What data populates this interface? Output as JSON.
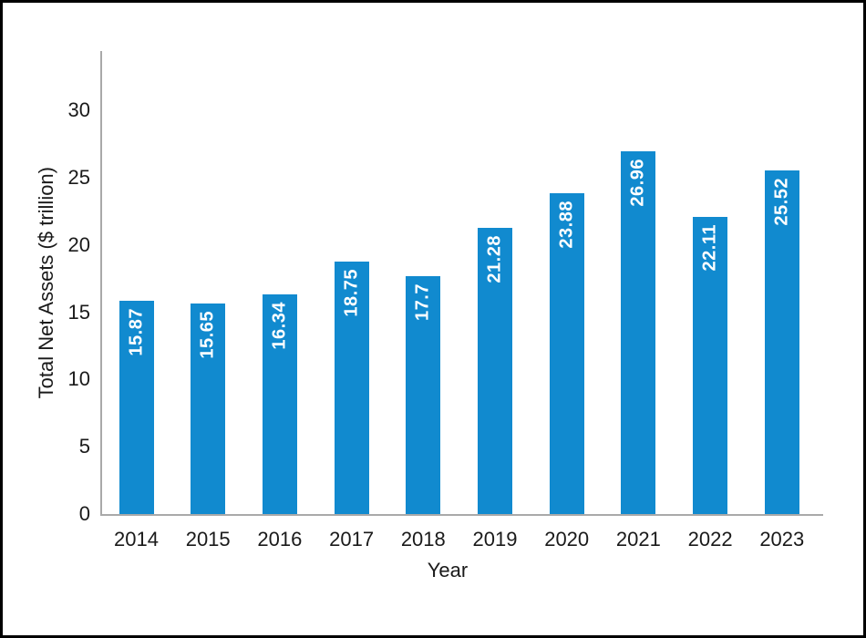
{
  "chart_data": {
    "type": "bar",
    "title": "",
    "xlabel": "Year",
    "ylabel": "Total Net Assets ($ trillion)",
    "categories": [
      "2014",
      "2015",
      "2016",
      "2017",
      "2018",
      "2019",
      "2020",
      "2021",
      "2022",
      "2023"
    ],
    "values": [
      15.87,
      15.65,
      16.34,
      18.75,
      17.7,
      21.28,
      23.88,
      26.96,
      22.11,
      25.52
    ],
    "bar_labels": [
      "15.87",
      "15.65",
      "16.34",
      "18.75",
      "17.7",
      "21.28",
      "23.88",
      "26.96",
      "22.11",
      "25.52"
    ],
    "yticks": [
      0,
      5,
      10,
      15,
      20,
      25,
      30
    ],
    "ylim": [
      0,
      34.5
    ],
    "grid": false,
    "legend": null,
    "bar_color": "#118acf",
    "bar_label_color": "#ffffff",
    "axis_color": "#a9a9a9",
    "text_color": "#1a1a1a",
    "frame_border_color": "#000000",
    "background_color": "#ffffff"
  }
}
